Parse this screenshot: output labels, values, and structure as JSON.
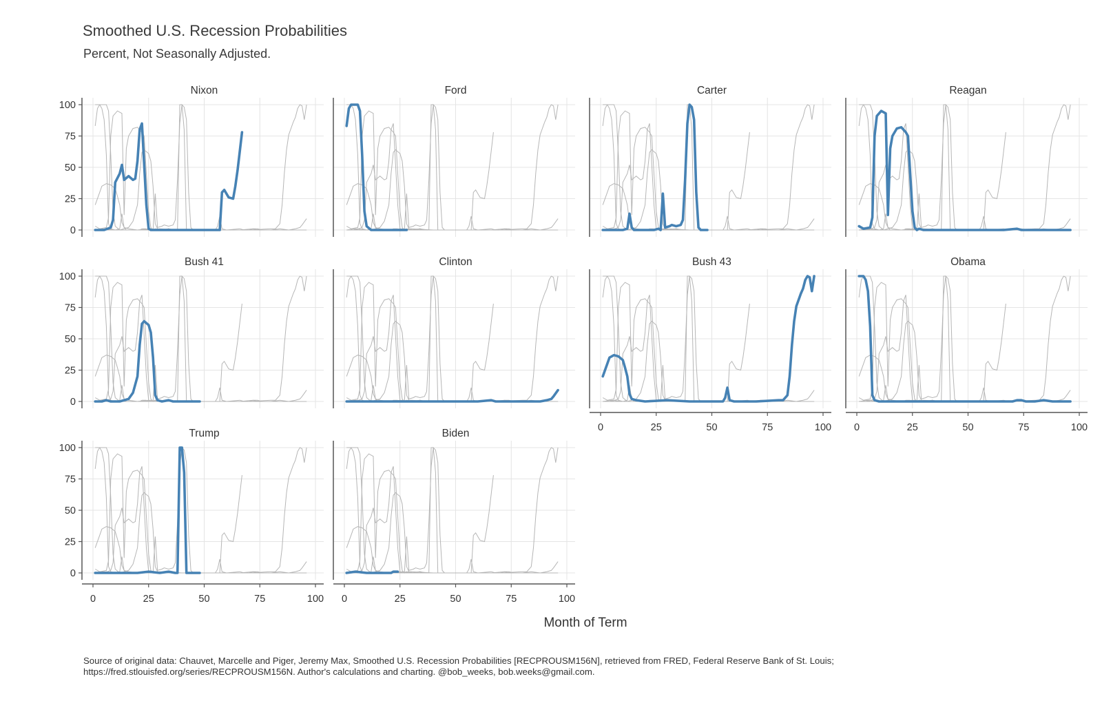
{
  "title": "Smoothed U.S. Recession Probabilities",
  "subtitle": "Percent, Not Seasonally Adjusted.",
  "xlabel": "Month of Term",
  "caption_line1": "Source of original data: Chauvet, Marcelle and Piger, Jeremy Max, Smoothed U.S. Recession Probabilities [RECPROUSM156N], retrieved from FRED, Federal Reserve Bank of St. Louis;",
  "caption_line2": "https://fred.stlouisfed.org/series/RECPROUSM156N. Author's calculations and charting. @bob_weeks, bob.weeks@gmail.com.",
  "colors": {
    "highlight": "#4682b4",
    "background_series": "#b5b5b5",
    "grid": "#e4e4e4",
    "axis": "#555555"
  },
  "chart_data": {
    "type": "line",
    "facet": "small-multiples",
    "x_ticks": [
      0,
      25,
      50,
      75,
      100
    ],
    "y_ticks": [
      0,
      25,
      50,
      75,
      100
    ],
    "xlim": [
      0,
      100
    ],
    "ylim": [
      0,
      100
    ],
    "series": [
      {
        "name": "Nixon",
        "points": [
          [
            1,
            0
          ],
          [
            5,
            0
          ],
          [
            8,
            2
          ],
          [
            9,
            8
          ],
          [
            10,
            38
          ],
          [
            12,
            45
          ],
          [
            13,
            52
          ],
          [
            14,
            40
          ],
          [
            16,
            43
          ],
          [
            18,
            40
          ],
          [
            19,
            41
          ],
          [
            20,
            55
          ],
          [
            21,
            80
          ],
          [
            22,
            85
          ],
          [
            24,
            20
          ],
          [
            25,
            1
          ],
          [
            26,
            0
          ],
          [
            28,
            0
          ],
          [
            35,
            0
          ],
          [
            45,
            0
          ],
          [
            55,
            0
          ],
          [
            57,
            0
          ],
          [
            58,
            30
          ],
          [
            59,
            32
          ],
          [
            61,
            26
          ],
          [
            63,
            25
          ],
          [
            64,
            35
          ],
          [
            65,
            48
          ],
          [
            67,
            78
          ]
        ]
      },
      {
        "name": "Ford",
        "points": [
          [
            1,
            83
          ],
          [
            2,
            97
          ],
          [
            3,
            100
          ],
          [
            6,
            100
          ],
          [
            7,
            95
          ],
          [
            8,
            60
          ],
          [
            9,
            15
          ],
          [
            10,
            3
          ],
          [
            12,
            0
          ],
          [
            20,
            0
          ],
          [
            28,
            0
          ]
        ]
      },
      {
        "name": "Carter",
        "points": [
          [
            1,
            0
          ],
          [
            10,
            0
          ],
          [
            12,
            1
          ],
          [
            13,
            13
          ],
          [
            14,
            2
          ],
          [
            15,
            0
          ],
          [
            24,
            0
          ],
          [
            26,
            1
          ],
          [
            27,
            0
          ],
          [
            28,
            29
          ],
          [
            29,
            2
          ],
          [
            31,
            3
          ],
          [
            32,
            4
          ],
          [
            34,
            3
          ],
          [
            36,
            4
          ],
          [
            37,
            8
          ],
          [
            38,
            40
          ],
          [
            39,
            85
          ],
          [
            40,
            100
          ],
          [
            41,
            98
          ],
          [
            42,
            88
          ],
          [
            43,
            30
          ],
          [
            44,
            2
          ],
          [
            45,
            0
          ],
          [
            48,
            0
          ]
        ]
      },
      {
        "name": "Reagan",
        "points": [
          [
            1,
            3
          ],
          [
            3,
            1
          ],
          [
            6,
            2
          ],
          [
            7,
            10
          ],
          [
            8,
            75
          ],
          [
            9,
            91
          ],
          [
            11,
            95
          ],
          [
            13,
            93
          ],
          [
            14,
            12
          ],
          [
            15,
            65
          ],
          [
            16,
            75
          ],
          [
            18,
            81
          ],
          [
            20,
            82
          ],
          [
            22,
            78
          ],
          [
            23,
            75
          ],
          [
            24,
            45
          ],
          [
            25,
            15
          ],
          [
            26,
            2
          ],
          [
            27,
            0
          ],
          [
            28,
            1
          ],
          [
            30,
            0
          ],
          [
            40,
            0
          ],
          [
            55,
            0
          ],
          [
            63,
            0
          ],
          [
            66,
            0
          ],
          [
            72,
            1
          ],
          [
            74,
            0
          ],
          [
            80,
            0
          ],
          [
            96,
            0
          ]
        ]
      },
      {
        "name": "Bush 41",
        "points": [
          [
            1,
            0
          ],
          [
            4,
            0
          ],
          [
            6,
            1
          ],
          [
            8,
            0
          ],
          [
            12,
            0
          ],
          [
            16,
            2
          ],
          [
            18,
            7
          ],
          [
            20,
            20
          ],
          [
            21,
            45
          ],
          [
            22,
            62
          ],
          [
            23,
            64
          ],
          [
            25,
            61
          ],
          [
            26,
            55
          ],
          [
            27,
            35
          ],
          [
            28,
            5
          ],
          [
            29,
            1
          ],
          [
            31,
            0
          ],
          [
            34,
            1
          ],
          [
            36,
            0
          ],
          [
            48,
            0
          ]
        ]
      },
      {
        "name": "Clinton",
        "points": [
          [
            1,
            0
          ],
          [
            20,
            0
          ],
          [
            40,
            0
          ],
          [
            60,
            0
          ],
          [
            66,
            1
          ],
          [
            68,
            0
          ],
          [
            80,
            0
          ],
          [
            88,
            0
          ],
          [
            91,
            1
          ],
          [
            93,
            2
          ],
          [
            94,
            4
          ],
          [
            96,
            9
          ]
        ]
      },
      {
        "name": "Bush 43",
        "points": [
          [
            1,
            20
          ],
          [
            3,
            30
          ],
          [
            4,
            35
          ],
          [
            6,
            37
          ],
          [
            8,
            36
          ],
          [
            10,
            33
          ],
          [
            11,
            27
          ],
          [
            12,
            20
          ],
          [
            13,
            6
          ],
          [
            14,
            2
          ],
          [
            16,
            1
          ],
          [
            20,
            0
          ],
          [
            30,
            1
          ],
          [
            40,
            0
          ],
          [
            50,
            0
          ],
          [
            55,
            0
          ],
          [
            56,
            3
          ],
          [
            57,
            11
          ],
          [
            58,
            1
          ],
          [
            60,
            0
          ],
          [
            70,
            0
          ],
          [
            80,
            1
          ],
          [
            82,
            1
          ],
          [
            84,
            5
          ],
          [
            85,
            20
          ],
          [
            86,
            45
          ],
          [
            87,
            64
          ],
          [
            88,
            76
          ],
          [
            90,
            86
          ],
          [
            91,
            90
          ],
          [
            92,
            97
          ],
          [
            93,
            100
          ],
          [
            94,
            99
          ],
          [
            95,
            88
          ],
          [
            96,
            100
          ]
        ]
      },
      {
        "name": "Obama",
        "points": [
          [
            1,
            100
          ],
          [
            3,
            100
          ],
          [
            4,
            97
          ],
          [
            5,
            88
          ],
          [
            6,
            60
          ],
          [
            7,
            5
          ],
          [
            8,
            1
          ],
          [
            10,
            0
          ],
          [
            20,
            0
          ],
          [
            30,
            0
          ],
          [
            40,
            0
          ],
          [
            50,
            0
          ],
          [
            60,
            0
          ],
          [
            70,
            0
          ],
          [
            72,
            1
          ],
          [
            74,
            1
          ],
          [
            76,
            0
          ],
          [
            80,
            0
          ],
          [
            84,
            1
          ],
          [
            88,
            0
          ],
          [
            96,
            0
          ]
        ]
      },
      {
        "name": "Trump",
        "points": [
          [
            1,
            0
          ],
          [
            10,
            0
          ],
          [
            20,
            0
          ],
          [
            25,
            1
          ],
          [
            30,
            0
          ],
          [
            34,
            1
          ],
          [
            37,
            0
          ],
          [
            38,
            0
          ],
          [
            39,
            100
          ],
          [
            40,
            100
          ],
          [
            41,
            80
          ],
          [
            42,
            0
          ],
          [
            45,
            0
          ],
          [
            48,
            0
          ]
        ]
      },
      {
        "name": "Biden",
        "points": [
          [
            1,
            0
          ],
          [
            5,
            1
          ],
          [
            10,
            0
          ],
          [
            15,
            0
          ],
          [
            19,
            0
          ],
          [
            21,
            0
          ],
          [
            22,
            1
          ],
          [
            23,
            1
          ],
          [
            24,
            1
          ]
        ]
      }
    ]
  }
}
